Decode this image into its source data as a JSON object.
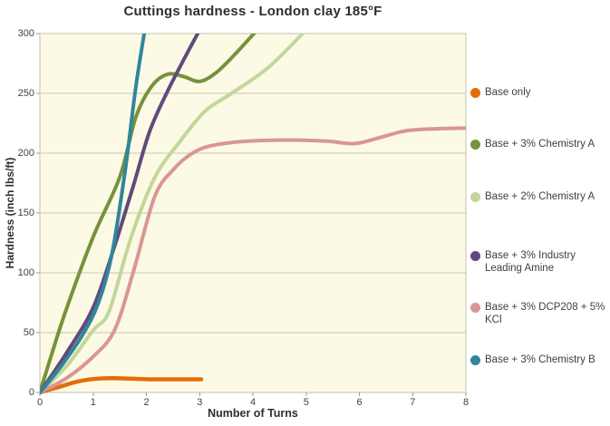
{
  "chart_data": {
    "type": "line",
    "title": "Cuttings hardness - London clay 185°F",
    "xlabel": "Number of Turns",
    "ylabel": "Hardness (inch lbs/ft)",
    "xlim": [
      0,
      8
    ],
    "ylim": [
      0,
      300
    ],
    "x_ticks": [
      0,
      1,
      2,
      3,
      4,
      5,
      6,
      7,
      8
    ],
    "y_ticks": [
      0,
      50,
      100,
      150,
      200,
      250,
      300
    ],
    "grid": "horizontal",
    "legend_position": "right",
    "plot_bg": "#FCFAE4",
    "series": [
      {
        "label": "Base only",
        "color": "#E36C0A",
        "points": [
          [
            0,
            0
          ],
          [
            0.35,
            4.5
          ],
          [
            0.7,
            9
          ],
          [
            1.0,
            11.2
          ],
          [
            1.3,
            12
          ],
          [
            1.7,
            11.5
          ],
          [
            2.1,
            11
          ],
          [
            2.6,
            11
          ],
          [
            3.03,
            11
          ]
        ]
      },
      {
        "label": "Base + 3% Chemistry A",
        "color": "#76923C",
        "points": [
          [
            0,
            0
          ],
          [
            0.25,
            36
          ],
          [
            0.5,
            70
          ],
          [
            1,
            130
          ],
          [
            1.5,
            180
          ],
          [
            1.8,
            230
          ],
          [
            2.1,
            256
          ],
          [
            2.4,
            266
          ],
          [
            2.7,
            264
          ],
          [
            3.0,
            260
          ],
          [
            3.3,
            267
          ],
          [
            3.65,
            282
          ],
          [
            4.08,
            303
          ]
        ]
      },
      {
        "label": "Base + 2% Chemistry A",
        "color": "#C3D69B",
        "points": [
          [
            0,
            0
          ],
          [
            0.5,
            22
          ],
          [
            1,
            52
          ],
          [
            1.3,
            68
          ],
          [
            1.7,
            128
          ],
          [
            2.15,
            179
          ],
          [
            2.6,
            208
          ],
          [
            3.1,
            235
          ],
          [
            3.6,
            250
          ],
          [
            4.3,
            272
          ],
          [
            5.0,
            303
          ]
        ]
      },
      {
        "label": "Base + 3% Industry Leading Amine",
        "color": "#604A7B",
        "points": [
          [
            0,
            0
          ],
          [
            0.5,
            33
          ],
          [
            1,
            71
          ],
          [
            1.4,
            122
          ],
          [
            1.75,
            172
          ],
          [
            2.06,
            218
          ],
          [
            2.4,
            252
          ],
          [
            2.7,
            278
          ],
          [
            3.0,
            303
          ]
        ]
      },
      {
        "label": "Base + 3% DCP208  + 5% KCl",
        "color": "#D99694",
        "points": [
          [
            0,
            0
          ],
          [
            0.5,
            12
          ],
          [
            1,
            30
          ],
          [
            1.4,
            52
          ],
          [
            1.75,
            100
          ],
          [
            2.15,
            163
          ],
          [
            2.5,
            186
          ],
          [
            2.9,
            201
          ],
          [
            3.3,
            207
          ],
          [
            3.9,
            210
          ],
          [
            4.7,
            211
          ],
          [
            5.4,
            210
          ],
          [
            5.9,
            208
          ],
          [
            6.3,
            212
          ],
          [
            6.8,
            218
          ],
          [
            7.2,
            220
          ],
          [
            8,
            221
          ]
        ]
      },
      {
        "label": "Base + 3% Chemistry B",
        "color": "#31859C",
        "points": [
          [
            0,
            0
          ],
          [
            0.4,
            22
          ],
          [
            0.8,
            48
          ],
          [
            1.1,
            75
          ],
          [
            1.35,
            115
          ],
          [
            1.6,
            185
          ],
          [
            1.8,
            255
          ],
          [
            1.97,
            303
          ]
        ]
      }
    ]
  }
}
